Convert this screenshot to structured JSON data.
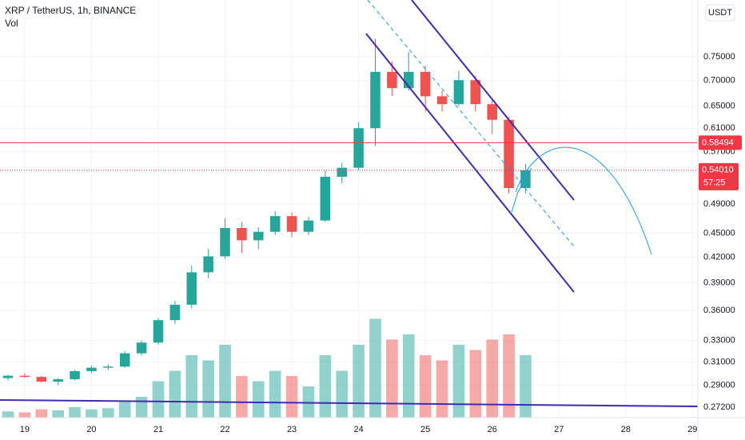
{
  "chart_data": {
    "type": "candlestick",
    "title": "XRP / TetherUS, 1h, BINANCE",
    "subtitle": "Vol",
    "currency": "USDT",
    "log_scale": true,
    "grid": true,
    "up_color": "#26a69a",
    "down_color": "#ef5350",
    "x": [
      18.75,
      19.0,
      19.25,
      19.5,
      19.75,
      20.0,
      20.25,
      20.5,
      20.75,
      21.0,
      21.25,
      21.5,
      21.75,
      22.0,
      22.25,
      22.5,
      22.75,
      23.0,
      23.25,
      23.5,
      23.75,
      24.0,
      24.25,
      24.5,
      24.75,
      25.0,
      25.25,
      25.5,
      25.75,
      26.0,
      26.25,
      26.5
    ],
    "open": [
      0.296,
      0.298,
      0.297,
      0.293,
      0.295,
      0.302,
      0.305,
      0.306,
      0.318,
      0.328,
      0.35,
      0.366,
      0.402,
      0.421,
      0.457,
      0.441,
      0.452,
      0.473,
      0.452,
      0.467,
      0.53,
      0.544,
      0.61,
      0.718,
      0.685,
      0.718,
      0.669,
      0.654,
      0.701,
      0.654,
      0.625,
      0.513
    ],
    "high": [
      0.299,
      0.3,
      0.298,
      0.296,
      0.303,
      0.307,
      0.308,
      0.32,
      0.33,
      0.352,
      0.37,
      0.41,
      0.43,
      0.47,
      0.465,
      0.458,
      0.48,
      0.478,
      0.472,
      0.54,
      0.552,
      0.62,
      0.79,
      0.74,
      0.76,
      0.73,
      0.68,
      0.72,
      0.71,
      0.665,
      0.63,
      0.55
    ],
    "low": [
      0.294,
      0.296,
      0.292,
      0.29,
      0.294,
      0.3,
      0.303,
      0.305,
      0.316,
      0.326,
      0.346,
      0.362,
      0.395,
      0.418,
      0.425,
      0.43,
      0.448,
      0.445,
      0.448,
      0.465,
      0.52,
      0.54,
      0.58,
      0.67,
      0.68,
      0.64,
      0.64,
      0.65,
      0.64,
      0.6,
      0.505,
      0.505
    ],
    "close": [
      0.298,
      0.297,
      0.293,
      0.295,
      0.302,
      0.305,
      0.306,
      0.318,
      0.328,
      0.35,
      0.366,
      0.402,
      0.421,
      0.457,
      0.441,
      0.452,
      0.473,
      0.452,
      0.467,
      0.53,
      0.544,
      0.61,
      0.718,
      0.685,
      0.718,
      0.669,
      0.654,
      0.701,
      0.654,
      0.625,
      0.513,
      0.5401
    ],
    "volume": [
      6,
      5,
      8,
      7,
      10,
      8,
      9,
      15,
      20,
      35,
      45,
      60,
      55,
      70,
      40,
      35,
      45,
      40,
      30,
      60,
      45,
      70,
      95,
      75,
      80,
      60,
      55,
      70,
      65,
      75,
      80,
      60
    ],
    "vlim": [
      0,
      100
    ],
    "xlim": [
      18.63,
      29.08
    ],
    "xticks": [
      19,
      20,
      21,
      22,
      23,
      24,
      25,
      26,
      27,
      28,
      29
    ],
    "ylim": [
      0.264,
      0.884
    ],
    "yticks": [
      {
        "value": 0.272,
        "label": "0.27200"
      },
      {
        "value": 0.29,
        "label": "0.29000"
      },
      {
        "value": 0.31,
        "label": "0.31000"
      },
      {
        "value": 0.33,
        "label": "0.33000"
      },
      {
        "value": 0.36,
        "label": "0.36000"
      },
      {
        "value": 0.39,
        "label": "0.39000"
      },
      {
        "value": 0.42,
        "label": "0.42000"
      },
      {
        "value": 0.45,
        "label": "0.45000"
      },
      {
        "value": 0.49,
        "label": "0.49000"
      },
      {
        "value": 0.57,
        "label": "0.57000"
      },
      {
        "value": 0.61,
        "label": "0.61000"
      },
      {
        "value": 0.65,
        "label": "0.65000"
      },
      {
        "value": 0.7,
        "label": "0.70000"
      },
      {
        "value": 0.75,
        "label": "0.75000"
      }
    ],
    "price_line": {
      "value": 0.58494,
      "color": "#f23645"
    },
    "last_price": {
      "value": 0.5401,
      "label": "0.54010",
      "countdown": "57:25",
      "color": "#f23645"
    }
  }
}
